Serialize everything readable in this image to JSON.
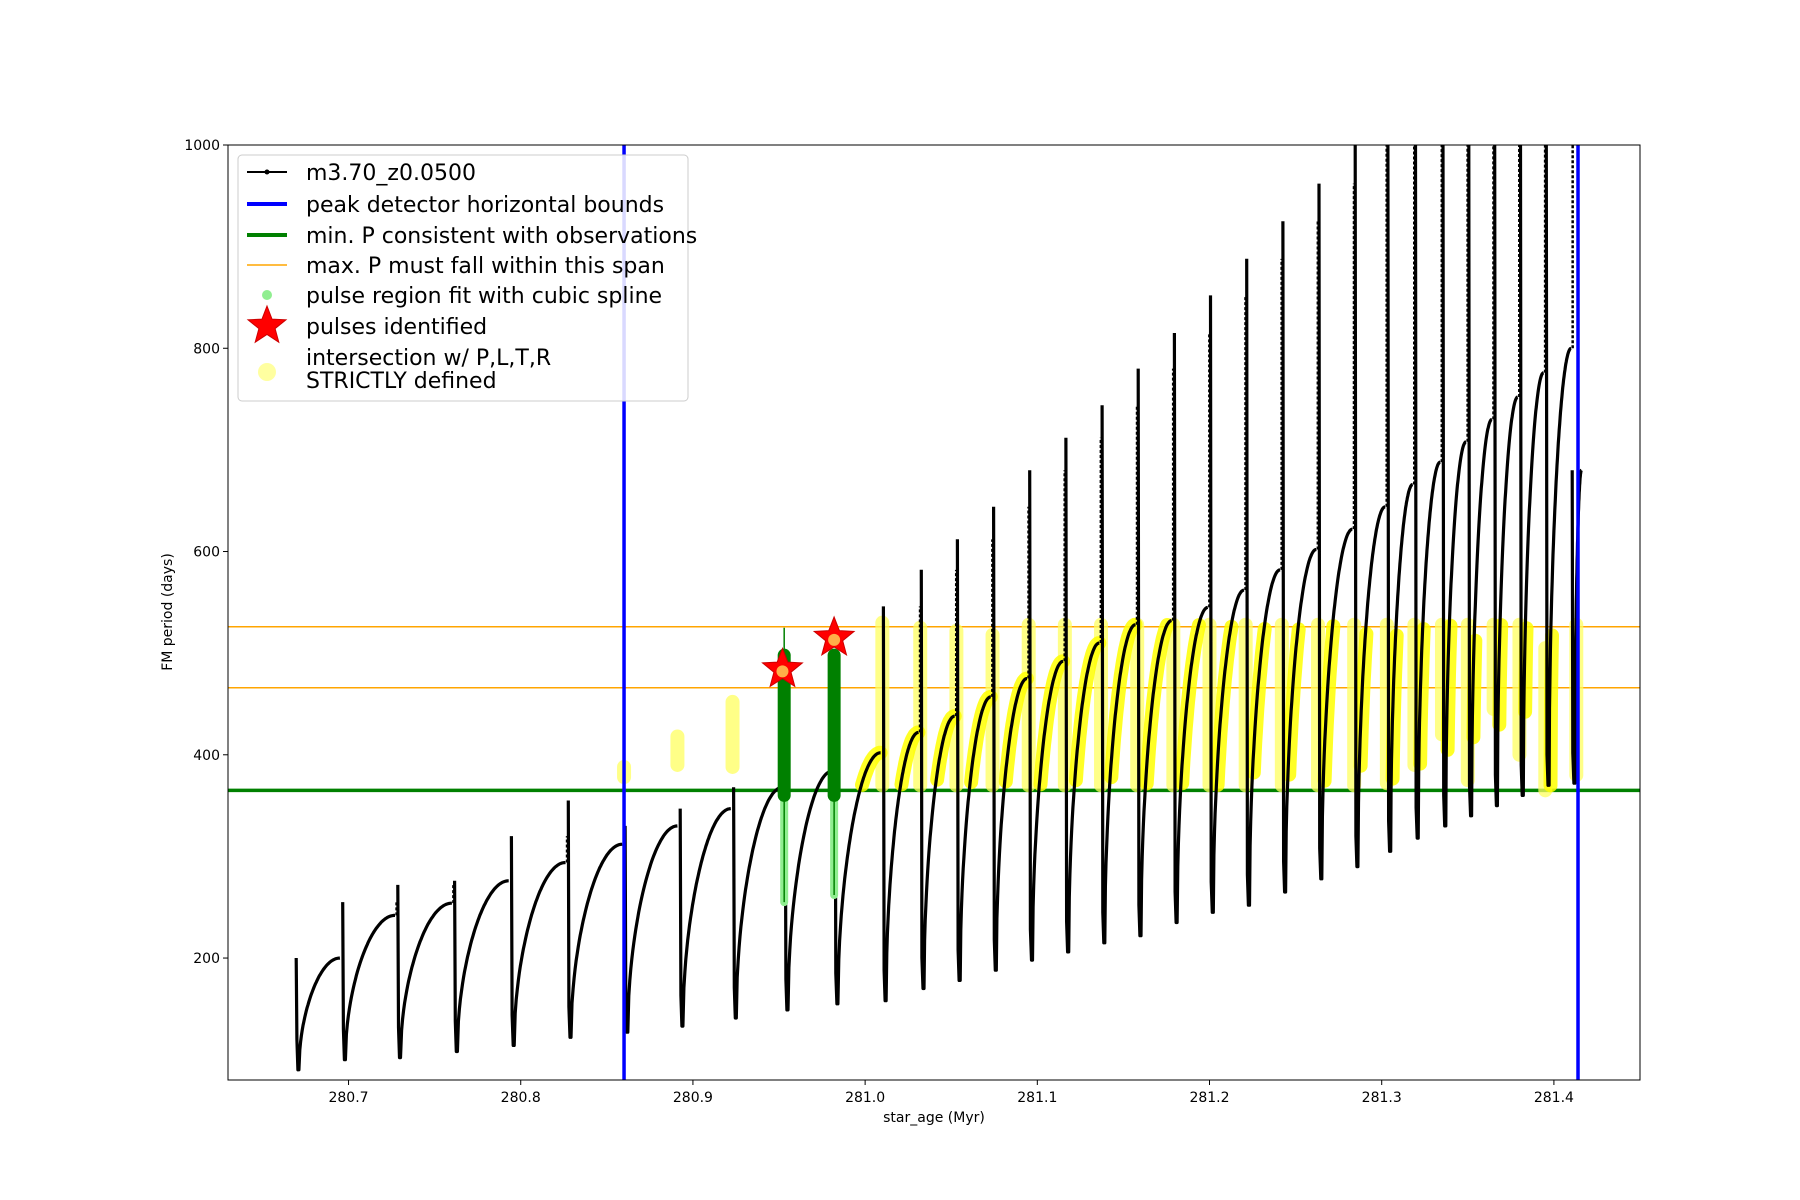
{
  "chart_data": {
    "type": "line",
    "xlabel": "star_age (Myr)",
    "ylabel": "FM period (days)",
    "xlim": [
      280.63,
      281.45
    ],
    "ylim": [
      80,
      1000
    ],
    "xticks": [
      280.7,
      280.8,
      280.9,
      281.0,
      281.1,
      281.2,
      281.3,
      281.4
    ],
    "xtick_labels": [
      "280.7",
      "280.8",
      "280.9",
      "281.0",
      "281.1",
      "281.2",
      "281.3",
      "281.4"
    ],
    "yticks": [
      200,
      400,
      600,
      800,
      1000
    ],
    "ytick_labels": [
      "200",
      "400",
      "600",
      "800",
      "1000"
    ],
    "legend": {
      "placement": "top-left",
      "entries": [
        {
          "label": "m3.70_z0.0500",
          "style": "line-dot",
          "color": "#000000"
        },
        {
          "label": "peak detector horizontal bounds",
          "style": "thick-line",
          "color": "#0000ff"
        },
        {
          "label": "min. P consistent with observations",
          "style": "thick-line",
          "color": "#008000"
        },
        {
          "label": "max. P must fall within this span",
          "style": "thin-line",
          "color": "#ffa500"
        },
        {
          "label": "pulse region fit with cubic spline",
          "style": "dot",
          "color": "#90ee90"
        },
        {
          "label": "pulses identified",
          "style": "star",
          "color": "#ff0000"
        },
        {
          "label": "intersection w/ P,L,T,R",
          "label2": "STRICTLY defined",
          "style": "big-dot",
          "color": "#ffffa0"
        }
      ]
    },
    "vlines": [
      {
        "x": 280.86,
        "color": "#0000ff"
      },
      {
        "x": 281.414,
        "color": "#0000ff"
      }
    ],
    "hlines": [
      {
        "y": 365,
        "color": "#008000"
      },
      {
        "y": 526,
        "color": "#ffa500"
      },
      {
        "y": 466,
        "color": "#ffa500"
      }
    ],
    "cycles": [
      {
        "x0": 280.67,
        "x1": 280.695,
        "start_min": 90,
        "peak": 200,
        "spike": 200
      },
      {
        "x0": 280.697,
        "x1": 280.727,
        "start_min": 100,
        "peak": 242,
        "spike": 255
      },
      {
        "x0": 280.729,
        "x1": 280.76,
        "start_min": 102,
        "peak": 254,
        "spike": 272
      },
      {
        "x0": 280.762,
        "x1": 280.793,
        "start_min": 108,
        "peak": 276,
        "spike": 276
      },
      {
        "x0": 280.795,
        "x1": 280.826,
        "start_min": 114,
        "peak": 294,
        "spike": 320
      },
      {
        "x0": 280.828,
        "x1": 280.859,
        "start_min": 122,
        "peak": 312,
        "spike": 355
      },
      {
        "x0": 280.861,
        "x1": 280.891,
        "start_min": 127,
        "peak": 330,
        "spike": 330
      },
      {
        "x0": 280.893,
        "x1": 280.922,
        "start_min": 133,
        "peak": 347,
        "spike": 347
      },
      {
        "x0": 280.924,
        "x1": 280.952,
        "start_min": 141,
        "peak": 368,
        "spike": 368
      },
      {
        "x0": 280.954,
        "x1": 280.981,
        "start_min": 149,
        "peak": 384,
        "spike": 384
      },
      {
        "x0": 280.983,
        "x1": 281.009,
        "start_min": 155,
        "peak": 402,
        "spike": 402
      },
      {
        "x0": 281.011,
        "x1": 281.031,
        "start_min": 158,
        "peak": 422,
        "spike": 546
      },
      {
        "x0": 281.033,
        "x1": 281.052,
        "start_min": 170,
        "peak": 438,
        "spike": 582
      },
      {
        "x0": 281.054,
        "x1": 281.073,
        "start_min": 178,
        "peak": 457,
        "spike": 612
      },
      {
        "x0": 281.075,
        "x1": 281.094,
        "start_min": 188,
        "peak": 475,
        "spike": 644
      },
      {
        "x0": 281.096,
        "x1": 281.115,
        "start_min": 198,
        "peak": 492,
        "spike": 680
      },
      {
        "x0": 281.117,
        "x1": 281.136,
        "start_min": 206,
        "peak": 510,
        "spike": 712
      },
      {
        "x0": 281.138,
        "x1": 281.157,
        "start_min": 215,
        "peak": 528,
        "spike": 744
      },
      {
        "x0": 281.159,
        "x1": 281.178,
        "start_min": 222,
        "peak": 532,
        "spike": 780
      },
      {
        "x0": 281.18,
        "x1": 281.199,
        "start_min": 235,
        "peak": 545,
        "spike": 815
      },
      {
        "x0": 281.201,
        "x1": 281.22,
        "start_min": 245,
        "peak": 562,
        "spike": 852
      },
      {
        "x0": 281.222,
        "x1": 281.241,
        "start_min": 252,
        "peak": 582,
        "spike": 888
      },
      {
        "x0": 281.243,
        "x1": 281.262,
        "start_min": 265,
        "peak": 602,
        "spike": 925
      },
      {
        "x0": 281.264,
        "x1": 281.283,
        "start_min": 278,
        "peak": 622,
        "spike": 962
      },
      {
        "x0": 281.285,
        "x1": 281.302,
        "start_min": 290,
        "peak": 644,
        "spike": 1000
      },
      {
        "x0": 281.304,
        "x1": 281.318,
        "start_min": 305,
        "peak": 666,
        "spike": 1000
      },
      {
        "x0": 281.32,
        "x1": 281.334,
        "start_min": 318,
        "peak": 688,
        "spike": 1000
      },
      {
        "x0": 281.336,
        "x1": 281.349,
        "start_min": 330,
        "peak": 708,
        "spike": 1000
      },
      {
        "x0": 281.351,
        "x1": 281.364,
        "start_min": 340,
        "peak": 730,
        "spike": 1000
      },
      {
        "x0": 281.366,
        "x1": 281.379,
        "start_min": 350,
        "peak": 752,
        "spike": 1000
      },
      {
        "x0": 281.381,
        "x1": 281.394,
        "start_min": 360,
        "peak": 776,
        "spike": 1000
      },
      {
        "x0": 281.396,
        "x1": 281.41,
        "start_min": 370,
        "peak": 800,
        "spike": 1000
      },
      {
        "x0": 281.411,
        "x1": 281.416,
        "start_min": 372,
        "peak": 680,
        "spike": 680
      }
    ],
    "spline_regions": [
      {
        "x": 280.953,
        "y_min": 255,
        "y_max": 525
      },
      {
        "x": 280.982,
        "y_min": 262,
        "y_max": 500
      }
    ],
    "pulses_identified": [
      {
        "x": 280.952,
        "y": 484
      },
      {
        "x": 280.982,
        "y": 515
      }
    ],
    "intersection_markers": [
      {
        "x": 280.86,
        "y_min": 378,
        "y_max": 388
      },
      {
        "x": 280.891,
        "y_min": 390,
        "y_max": 418
      },
      {
        "x": 280.923,
        "y_min": 388,
        "y_max": 452
      },
      {
        "x": 281.01,
        "y_min": 370,
        "y_max": 530
      },
      {
        "x": 281.032,
        "y_min": 370,
        "y_max": 525
      },
      {
        "x": 281.053,
        "y_min": 370,
        "y_max": 522
      },
      {
        "x": 281.074,
        "y_min": 370,
        "y_max": 518
      },
      {
        "x": 281.095,
        "y_min": 370,
        "y_max": 528
      },
      {
        "x": 281.116,
        "y_min": 370,
        "y_max": 528
      },
      {
        "x": 281.137,
        "y_min": 370,
        "y_max": 528
      },
      {
        "x": 281.158,
        "y_min": 370,
        "y_max": 528
      },
      {
        "x": 281.179,
        "y_min": 370,
        "y_max": 528
      },
      {
        "x": 281.2,
        "y_min": 370,
        "y_max": 528
      },
      {
        "x": 281.221,
        "y_min": 370,
        "y_max": 528
      },
      {
        "x": 281.242,
        "y_min": 370,
        "y_max": 528
      },
      {
        "x": 281.263,
        "y_min": 370,
        "y_max": 528
      },
      {
        "x": 281.284,
        "y_min": 370,
        "y_max": 528
      },
      {
        "x": 281.303,
        "y_min": 372,
        "y_max": 528
      },
      {
        "x": 281.319,
        "y_min": 390,
        "y_max": 528
      },
      {
        "x": 281.335,
        "y_min": 420,
        "y_max": 528
      },
      {
        "x": 281.35,
        "y_min": 375,
        "y_max": 528
      },
      {
        "x": 281.365,
        "y_min": 445,
        "y_max": 528
      },
      {
        "x": 281.38,
        "y_min": 400,
        "y_max": 528
      },
      {
        "x": 281.395,
        "y_min": 365,
        "y_max": 505
      },
      {
        "x": 281.413,
        "y_min": 380,
        "y_max": 528
      }
    ]
  }
}
